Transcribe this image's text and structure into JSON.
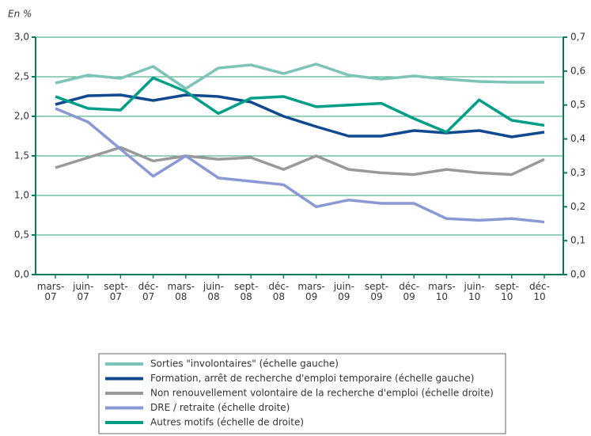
{
  "chart_data": {
    "type": "line",
    "unit_label": "En %",
    "categories": [
      "mars-07",
      "juin-07",
      "sept-07",
      "déc-07",
      "mars-08",
      "juin-08",
      "sept-08",
      "déc-08",
      "mars-09",
      "juin-09",
      "sept-09",
      "déc-09",
      "mars-10",
      "juin-10",
      "sept-10",
      "déc-10"
    ],
    "ylim": [
      0,
      3
    ],
    "yticks": [
      {
        "value": 0,
        "label": "0,0"
      },
      {
        "value": 0.5,
        "label": "0,5"
      },
      {
        "value": 1,
        "label": "1,0"
      },
      {
        "value": 1.5,
        "label": "1,5"
      },
      {
        "value": 2,
        "label": "2,0"
      },
      {
        "value": 2.5,
        "label": "2,5"
      },
      {
        "value": 3,
        "label": "3,0"
      }
    ],
    "y2lim": [
      0,
      0.7
    ],
    "y2ticks": [
      {
        "value": 0,
        "label": "0,0"
      },
      {
        "value": 0.1,
        "label": "0,1"
      },
      {
        "value": 0.2,
        "label": "0,2"
      },
      {
        "value": 0.3,
        "label": "0,3"
      },
      {
        "value": 0.4,
        "label": "0,4"
      },
      {
        "value": 0.5,
        "label": "0,5"
      },
      {
        "value": 0.6,
        "label": "0,6"
      },
      {
        "value": 0.7,
        "label": "0,7"
      }
    ],
    "grid": true,
    "series": [
      {
        "name": "Sorties \"involontaires\" (échelle gauche)",
        "color": "#7cc3b8",
        "values": [
          2.42,
          2.52,
          2.48,
          2.63,
          2.35,
          2.61,
          2.65,
          2.54,
          2.66,
          2.52,
          2.47,
          2.51,
          2.47,
          2.44,
          2.43,
          2.43
        ]
      },
      {
        "name": "Formation, arrêt de recherche d'emploi temporaire (échelle gauche)",
        "color": "#114a8e",
        "values": [
          2.15,
          2.26,
          2.27,
          2.2,
          2.27,
          2.25,
          2.18,
          2.0,
          1.87,
          1.75,
          1.75,
          1.82,
          1.79,
          1.82,
          1.74,
          1.8
        ]
      },
      {
        "name": "Non renouvellement volontaire de la recherche d'emploi (échelle droite)",
        "color": "#999999",
        "axis": "y2",
        "values": [
          0.315,
          0.345,
          0.375,
          0.335,
          0.35,
          0.34,
          0.345,
          0.31,
          0.35,
          0.31,
          0.3,
          0.295,
          0.31,
          0.3,
          0.295,
          0.34
        ]
      },
      {
        "name": "DRE / retraite (échelle droite)",
        "color": "#8a99d4",
        "axis": "y2",
        "values": [
          0.49,
          0.45,
          0.37,
          0.29,
          0.35,
          0.285,
          0.275,
          0.265,
          0.2,
          0.22,
          0.21,
          0.21,
          0.165,
          0.16,
          0.165,
          0.155
        ]
      },
      {
        "name": "Autres motifs (échelle de droite)",
        "color": "#009e88",
        "axis": "y2",
        "values": [
          0.525,
          0.49,
          0.485,
          0.58,
          0.54,
          0.475,
          0.52,
          0.525,
          0.495,
          0.5,
          0.505,
          0.46,
          0.42,
          0.515,
          0.455,
          0.44
        ]
      }
    ]
  }
}
